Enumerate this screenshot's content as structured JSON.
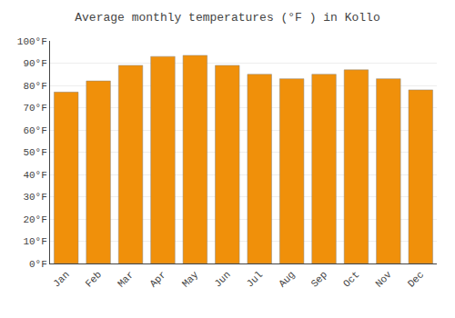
{
  "chart_data": {
    "type": "bar",
    "title": "Average monthly temperatures (°F ) in Kollo",
    "categories": [
      "Jan",
      "Feb",
      "Mar",
      "Apr",
      "May",
      "Jun",
      "Jul",
      "Aug",
      "Sep",
      "Oct",
      "Nov",
      "Dec"
    ],
    "values": [
      77,
      82,
      89,
      93,
      93.5,
      89,
      85,
      83,
      85,
      87,
      83,
      78
    ],
    "color": "#F0900A",
    "ylim": [
      0,
      100
    ],
    "yticks": [
      {
        "value": 0,
        "label": "0°F"
      },
      {
        "value": 10,
        "label": "10°F"
      },
      {
        "value": 20,
        "label": "20°F"
      },
      {
        "value": 30,
        "label": "30°F"
      },
      {
        "value": 40,
        "label": "40°F"
      },
      {
        "value": 50,
        "label": "50°F"
      },
      {
        "value": 60,
        "label": "60°F"
      },
      {
        "value": 70,
        "label": "70°F"
      },
      {
        "value": 80,
        "label": "80°F"
      },
      {
        "value": 90,
        "label": "90°F"
      },
      {
        "value": 100,
        "label": "100°F"
      }
    ],
    "grid": true
  }
}
